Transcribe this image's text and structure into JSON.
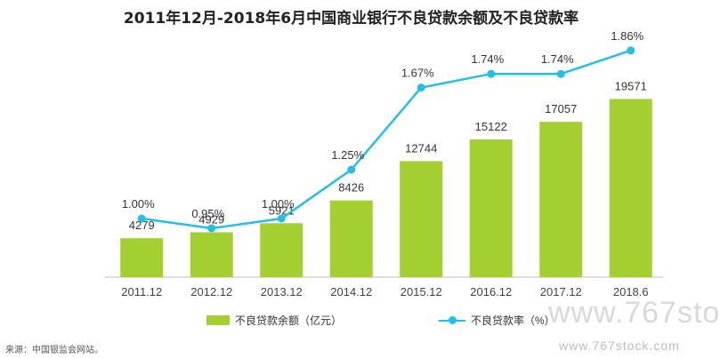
{
  "chart_data": {
    "type": "bar",
    "title": "2011年12月-2018年6月中国商业银行不良贷款余额及不良贷款率",
    "categories": [
      "2011.12",
      "2012.12",
      "2013.12",
      "2014.12",
      "2015.12",
      "2016.12",
      "2017.12",
      "2018.6"
    ],
    "series": [
      {
        "name": "不良贷款余额（亿元）",
        "type": "bar",
        "values": [
          4279,
          4929,
          5921,
          8426,
          12744,
          15122,
          17057,
          19571
        ],
        "color": "#a4cf30"
      },
      {
        "name": "不良贷款率（%）",
        "type": "line",
        "values": [
          1.0,
          0.95,
          1.0,
          1.25,
          1.67,
          1.74,
          1.74,
          1.86
        ],
        "labels": [
          "1.00%",
          "0.95%",
          "1.00%",
          "1.25%",
          "1.67%",
          "1.74%",
          "1.74%",
          "1.86%"
        ],
        "color": "#22c0e8"
      }
    ],
    "grid": false,
    "legend_position": "bottom"
  },
  "source_text": "来源：中国银监会网站。",
  "watermark": {
    "line1": "www.767sto",
    "line2": "www.767stock.com"
  }
}
